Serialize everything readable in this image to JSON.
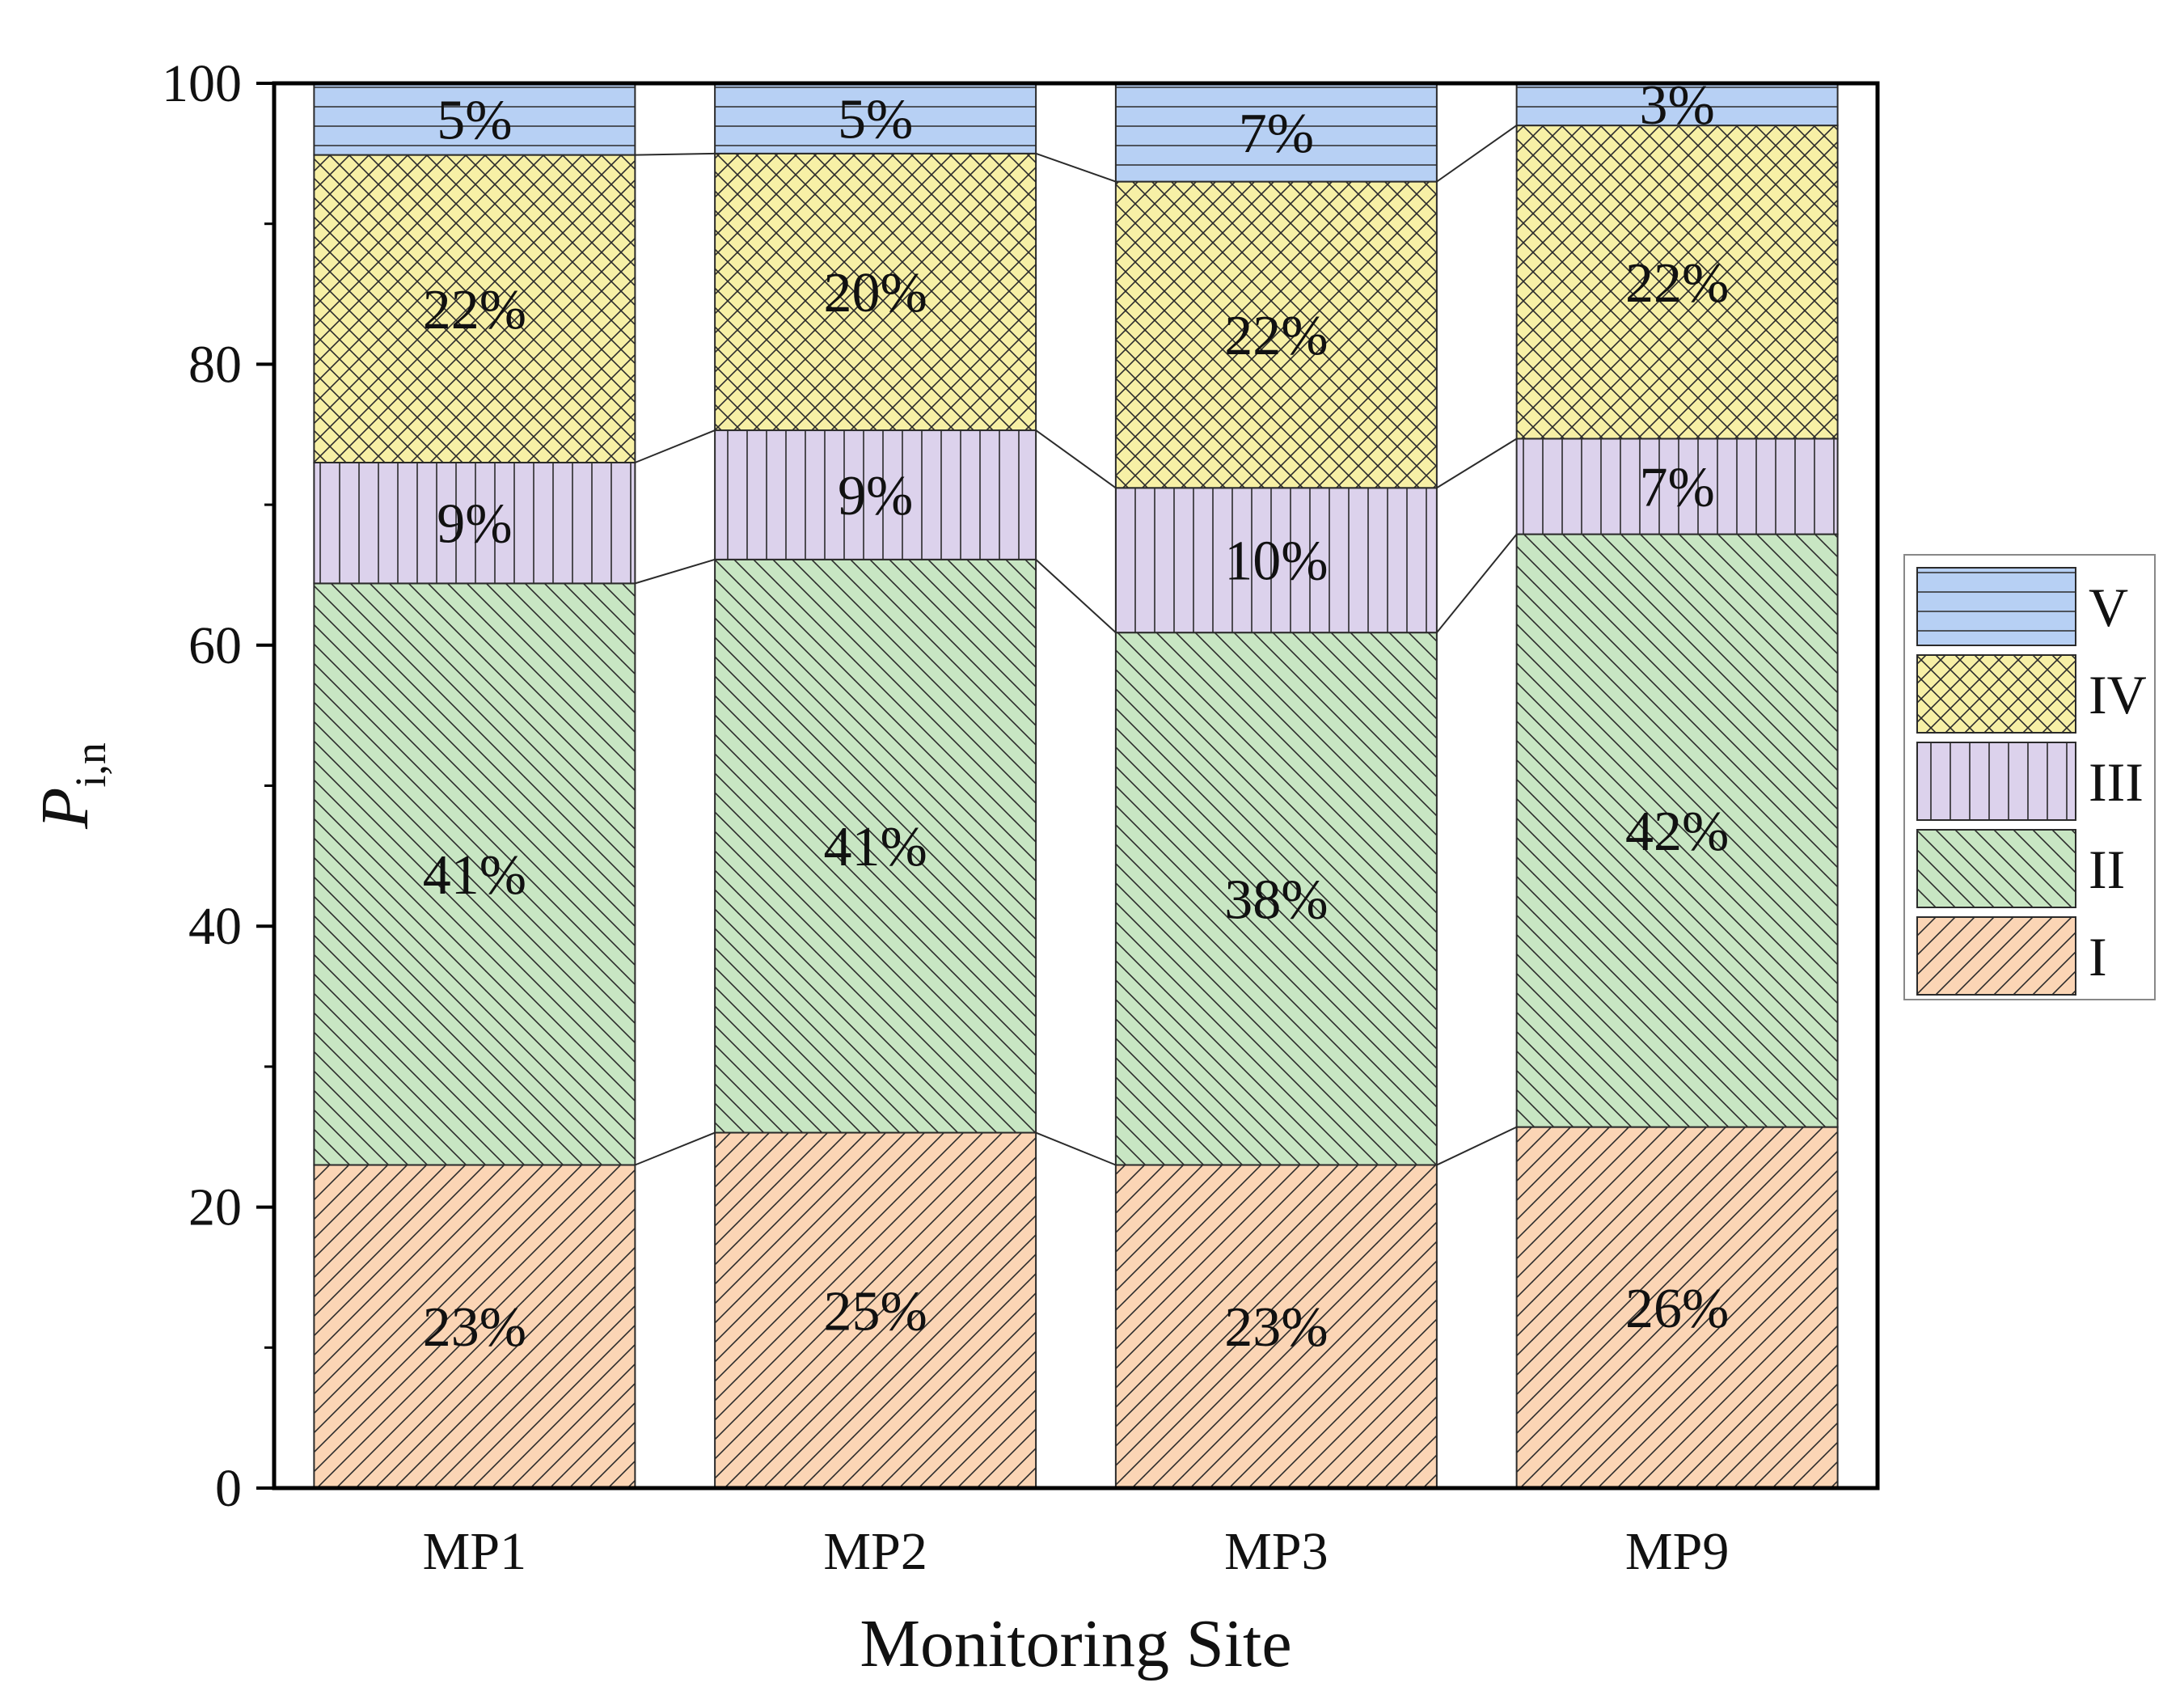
{
  "chart_data": {
    "type": "bar",
    "stacked": true,
    "xlabel": "Monitoring Site",
    "ylabel": {
      "main": "P",
      "sub": "i,n"
    },
    "ylim": [
      0,
      100
    ],
    "yticks": [
      "0",
      "20",
      "40",
      "60",
      "80",
      "100"
    ],
    "categories": [
      "MP1",
      "MP2",
      "MP3",
      "MP9"
    ],
    "series": [
      {
        "name": "I",
        "color": "#fbd5b5",
        "pattern": "forward-diagonal",
        "values": [
          23,
          25.3,
          23,
          25.7
        ],
        "labels": [
          "23%",
          "25%",
          "23%",
          "26%"
        ]
      },
      {
        "name": "II",
        "color": "#c8e6c3",
        "pattern": "back-diagonal",
        "values": [
          41.4,
          40.8,
          37.9,
          42.2
        ],
        "labels": [
          "41%",
          "41%",
          "38%",
          "42%"
        ]
      },
      {
        "name": "III",
        "color": "#dcd2ec",
        "pattern": "vertical",
        "values": [
          8.6,
          9.2,
          10.3,
          6.8
        ],
        "labels": [
          "9%",
          "9%",
          "10%",
          "7%"
        ]
      },
      {
        "name": "IV",
        "color": "#f7f0a6",
        "pattern": "crosshatch",
        "values": [
          21.9,
          19.7,
          21.8,
          22.3
        ],
        "labels": [
          "22%",
          "20%",
          "22%",
          "22%"
        ]
      },
      {
        "name": "V",
        "color": "#b7d0f4",
        "pattern": "horizontal",
        "values": [
          5.1,
          5,
          7,
          3
        ],
        "labels": [
          "5%",
          "5%",
          "7%",
          "3%"
        ]
      }
    ],
    "legend": {
      "position": "right",
      "order": [
        "V",
        "IV",
        "III",
        "II",
        "I"
      ]
    },
    "connector_lines": true,
    "grid": false
  }
}
